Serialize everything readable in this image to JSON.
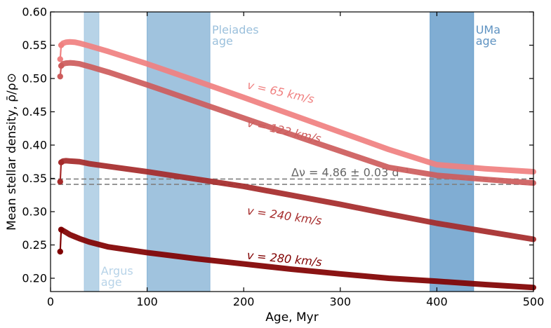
{
  "chart_data": {
    "type": "line",
    "xlabel": "Age, Myr",
    "ylabel": "Mean stellar density, ρ̄/ρ⊙",
    "xlim": [
      0,
      500
    ],
    "ylim": [
      0.18,
      0.6
    ],
    "xticks": [
      0,
      100,
      200,
      300,
      400,
      500
    ],
    "yticks": [
      0.2,
      0.25,
      0.3,
      0.35,
      0.4,
      0.45,
      0.5,
      0.55,
      0.6
    ],
    "grid": false,
    "age_bands": [
      {
        "name": "Argus age",
        "label_lines": [
          "Argus",
          "age"
        ],
        "x_range": [
          35,
          50
        ],
        "color": "#aacbe3",
        "label_color": "#b7d3e8"
      },
      {
        "name": "Pleiades age",
        "label_lines": [
          "Pleiades",
          "age"
        ],
        "x_range": [
          100,
          165
        ],
        "color": "#8fb8d8",
        "label_color": "#9bc0dc"
      },
      {
        "name": "UMa age",
        "label_lines": [
          "UMa",
          "age"
        ],
        "x_range": [
          393,
          438
        ],
        "color": "#6a9fcb",
        "label_color": "#5f93c2"
      }
    ],
    "reference_lines": [
      {
        "label": "Δν = 4.86 ± 0.03 d⁻¹",
        "y": [
          0.349,
          0.341
        ],
        "color": "#808080",
        "style": "dashed"
      }
    ],
    "series": [
      {
        "name": "v = 65 km/s",
        "color": "#f08080",
        "x": [
          10,
          11,
          13,
          16,
          20,
          25,
          30,
          40,
          60,
          100,
          150,
          200,
          250,
          300,
          350,
          400,
          450,
          500
        ],
        "y": [
          0.529,
          0.55,
          0.553,
          0.5545,
          0.555,
          0.5545,
          0.553,
          0.549,
          0.5405,
          0.522,
          0.497,
          0.4715,
          0.4455,
          0.4195,
          0.3935,
          0.3705,
          0.3645,
          0.36
        ]
      },
      {
        "name": "v = 122 km/s",
        "color": "#cd5c5c",
        "x": [
          10,
          11,
          13,
          16,
          20,
          25,
          30,
          40,
          60,
          100,
          150,
          200,
          250,
          300,
          350,
          400,
          450,
          500
        ],
        "y": [
          0.503,
          0.519,
          0.522,
          0.523,
          0.5235,
          0.523,
          0.522,
          0.518,
          0.5095,
          0.4905,
          0.4655,
          0.4405,
          0.4155,
          0.391,
          0.3665,
          0.3545,
          0.3485,
          0.343
        ]
      },
      {
        "name": "v = 240 km/s",
        "color": "#a52a2a",
        "x": [
          10,
          11,
          13,
          16,
          20,
          25,
          30,
          40,
          60,
          100,
          150,
          200,
          250,
          300,
          350,
          400,
          450,
          500
        ],
        "y": [
          0.345,
          0.374,
          0.376,
          0.3765,
          0.376,
          0.3755,
          0.375,
          0.372,
          0.368,
          0.36,
          0.349,
          0.338,
          0.3245,
          0.311,
          0.2965,
          0.2825,
          0.2705,
          0.2585
        ]
      },
      {
        "name": "v = 280 km/s",
        "color": "#800000",
        "x": [
          10,
          11,
          13,
          16,
          20,
          25,
          30,
          40,
          60,
          100,
          150,
          200,
          250,
          300,
          350,
          400,
          450,
          500
        ],
        "y": [
          0.24,
          0.273,
          0.2715,
          0.269,
          0.2655,
          0.2625,
          0.2595,
          0.2545,
          0.247,
          0.2385,
          0.2295,
          0.2215,
          0.2135,
          0.2065,
          0.2,
          0.1955,
          0.1905,
          0.186
        ]
      }
    ],
    "series_labels": [
      {
        "text": "v = 65 km/s",
        "x": 203,
        "y": 0.485,
        "angle": 12.5,
        "color": "#f08080"
      },
      {
        "text": "v = 122 km/s",
        "x": 203,
        "y": 0.428,
        "angle": 12.5,
        "color": "#cd5c5c"
      },
      {
        "text": "v = 240 km/s",
        "x": 203,
        "y": 0.296,
        "angle": 8,
        "color": "#a52a2a"
      },
      {
        "text": "v = 280 km/s",
        "x": 203,
        "y": 0.229,
        "angle": 5.5,
        "color": "#800000"
      }
    ]
  }
}
